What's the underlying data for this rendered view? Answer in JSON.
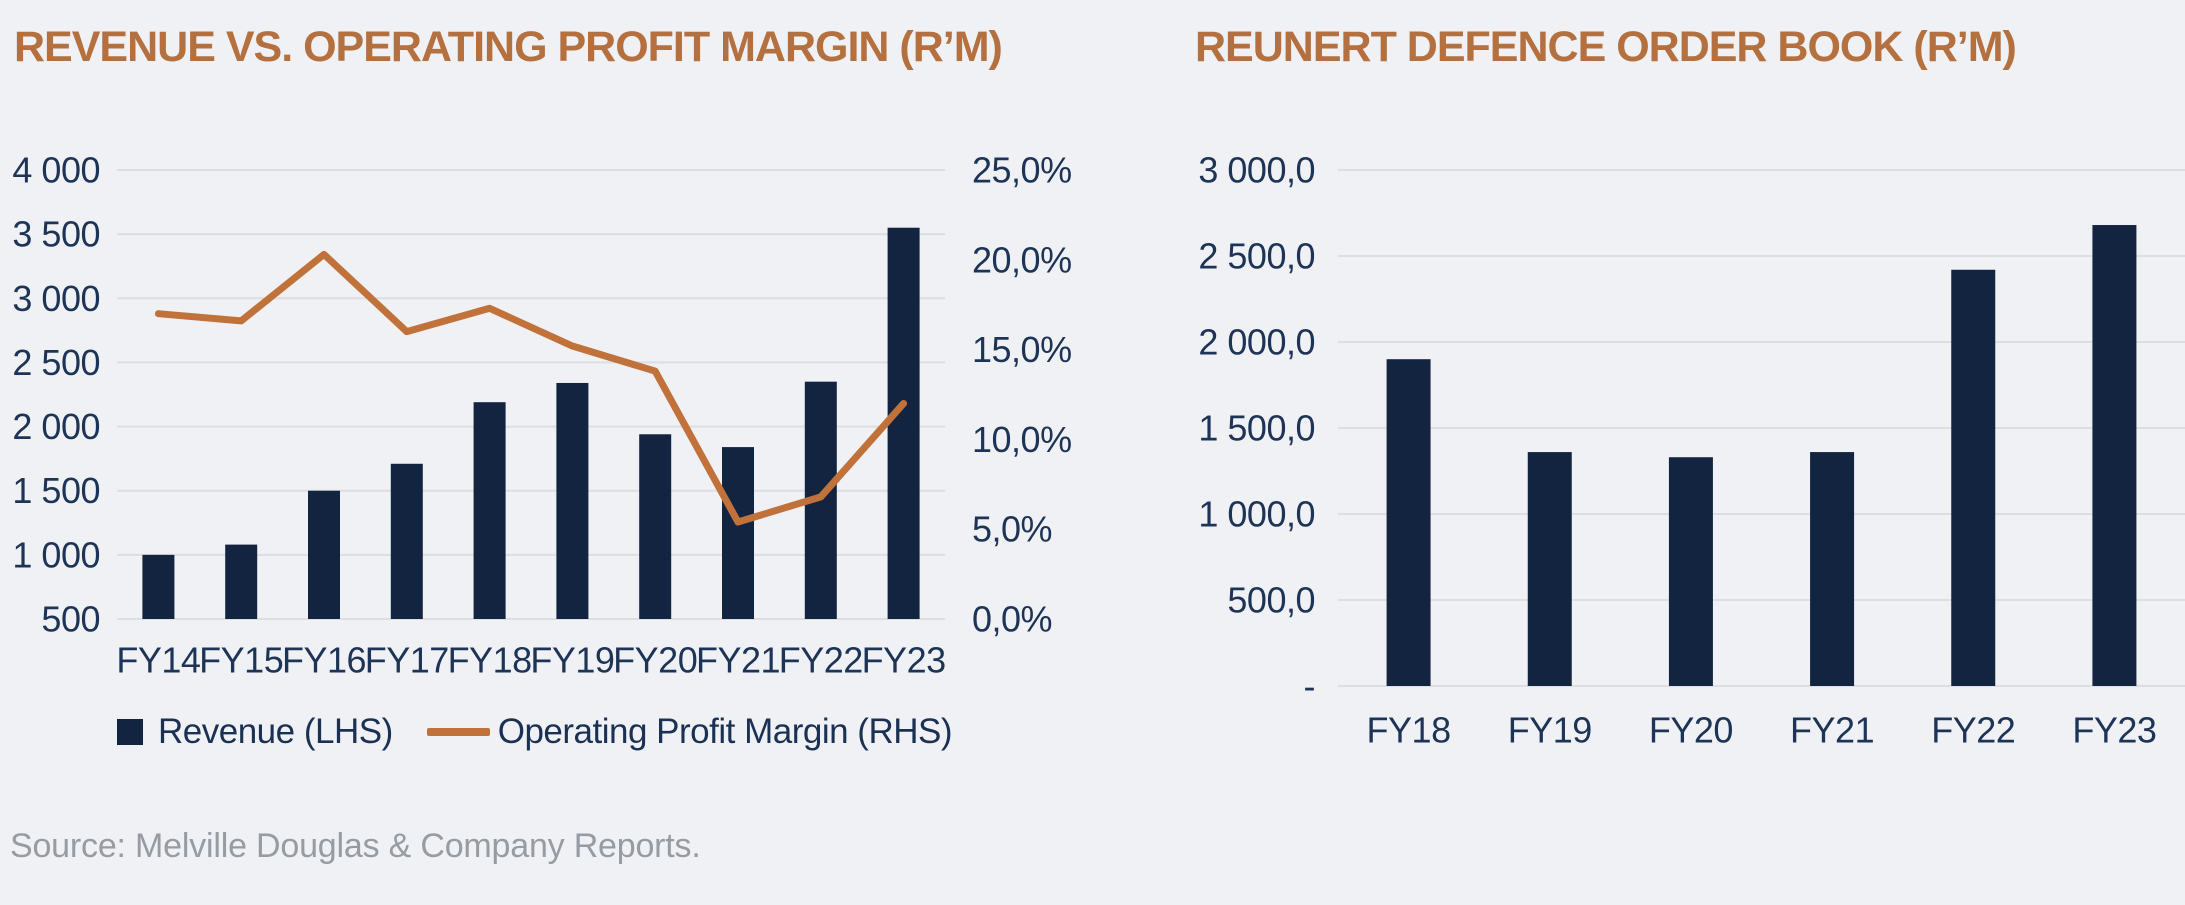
{
  "page": {
    "background": "#f0f1f4"
  },
  "colors": {
    "navy_bar": "#122440",
    "copper_line": "#c1713a",
    "title_copper": "#b5703f",
    "gridline": "#dddee1",
    "axis_text": "#1d3456",
    "legend_text": "#1b3153",
    "source_gray": "#959ca4"
  },
  "source_note": {
    "label": "Source: Melville Douglas & Company Reports."
  },
  "chart_data": [
    {
      "id": "revenue-vs-operating-profit-margin",
      "type": "combo_bar_line",
      "title": "REVENUE VS. OPERATING PROFIT MARGIN (R’M)",
      "categories": [
        "FY14",
        "FY15",
        "FY16",
        "FY17",
        "FY18",
        "FY19",
        "FY20",
        "FY21",
        "FY22",
        "FY23"
      ],
      "series": [
        {
          "name": "Revenue (LHS)",
          "type": "bar",
          "axis": "left",
          "values": [
            1000,
            1080,
            1500,
            1710,
            2190,
            2340,
            1940,
            1840,
            2350,
            3550
          ]
        },
        {
          "name": "Operating Profit Margin (RHS)",
          "type": "line",
          "axis": "right",
          "unit": "%",
          "values": [
            17.0,
            16.6,
            20.3,
            16.0,
            17.3,
            15.2,
            13.8,
            5.4,
            6.8,
            12.0
          ]
        }
      ],
      "left_axis": {
        "min": 500,
        "max": 4000,
        "step": 500,
        "tick_labels_top_to_bottom": [
          "4 000",
          "3 500",
          "3 000",
          "2 500",
          "2 000",
          "1 500",
          "1 000",
          "500"
        ]
      },
      "right_axis": {
        "min": 0,
        "max": 25,
        "step": 5,
        "tick_labels_top_to_bottom": [
          "25,0%",
          "20,0%",
          "15,0%",
          "10,0%",
          "5,0%",
          "0,0%"
        ]
      },
      "grid": true,
      "legend_position": "bottom"
    },
    {
      "id": "reunert-defence-order-book",
      "type": "bar",
      "title": "REUNERT DEFENCE ORDER BOOK (R’M)",
      "categories": [
        "FY18",
        "FY19",
        "FY20",
        "FY21",
        "FY22",
        "FY23"
      ],
      "values": [
        1900,
        1360,
        1330,
        1360,
        2420,
        2680
      ],
      "y_axis": {
        "min": 0,
        "max": 3000,
        "step": 500,
        "tick_labels_top_to_bottom": [
          "3 000,0",
          "2 500,0",
          "2 000,0",
          "1 500,0",
          "1 000,0",
          "500,0",
          "-"
        ]
      },
      "grid": true
    }
  ]
}
